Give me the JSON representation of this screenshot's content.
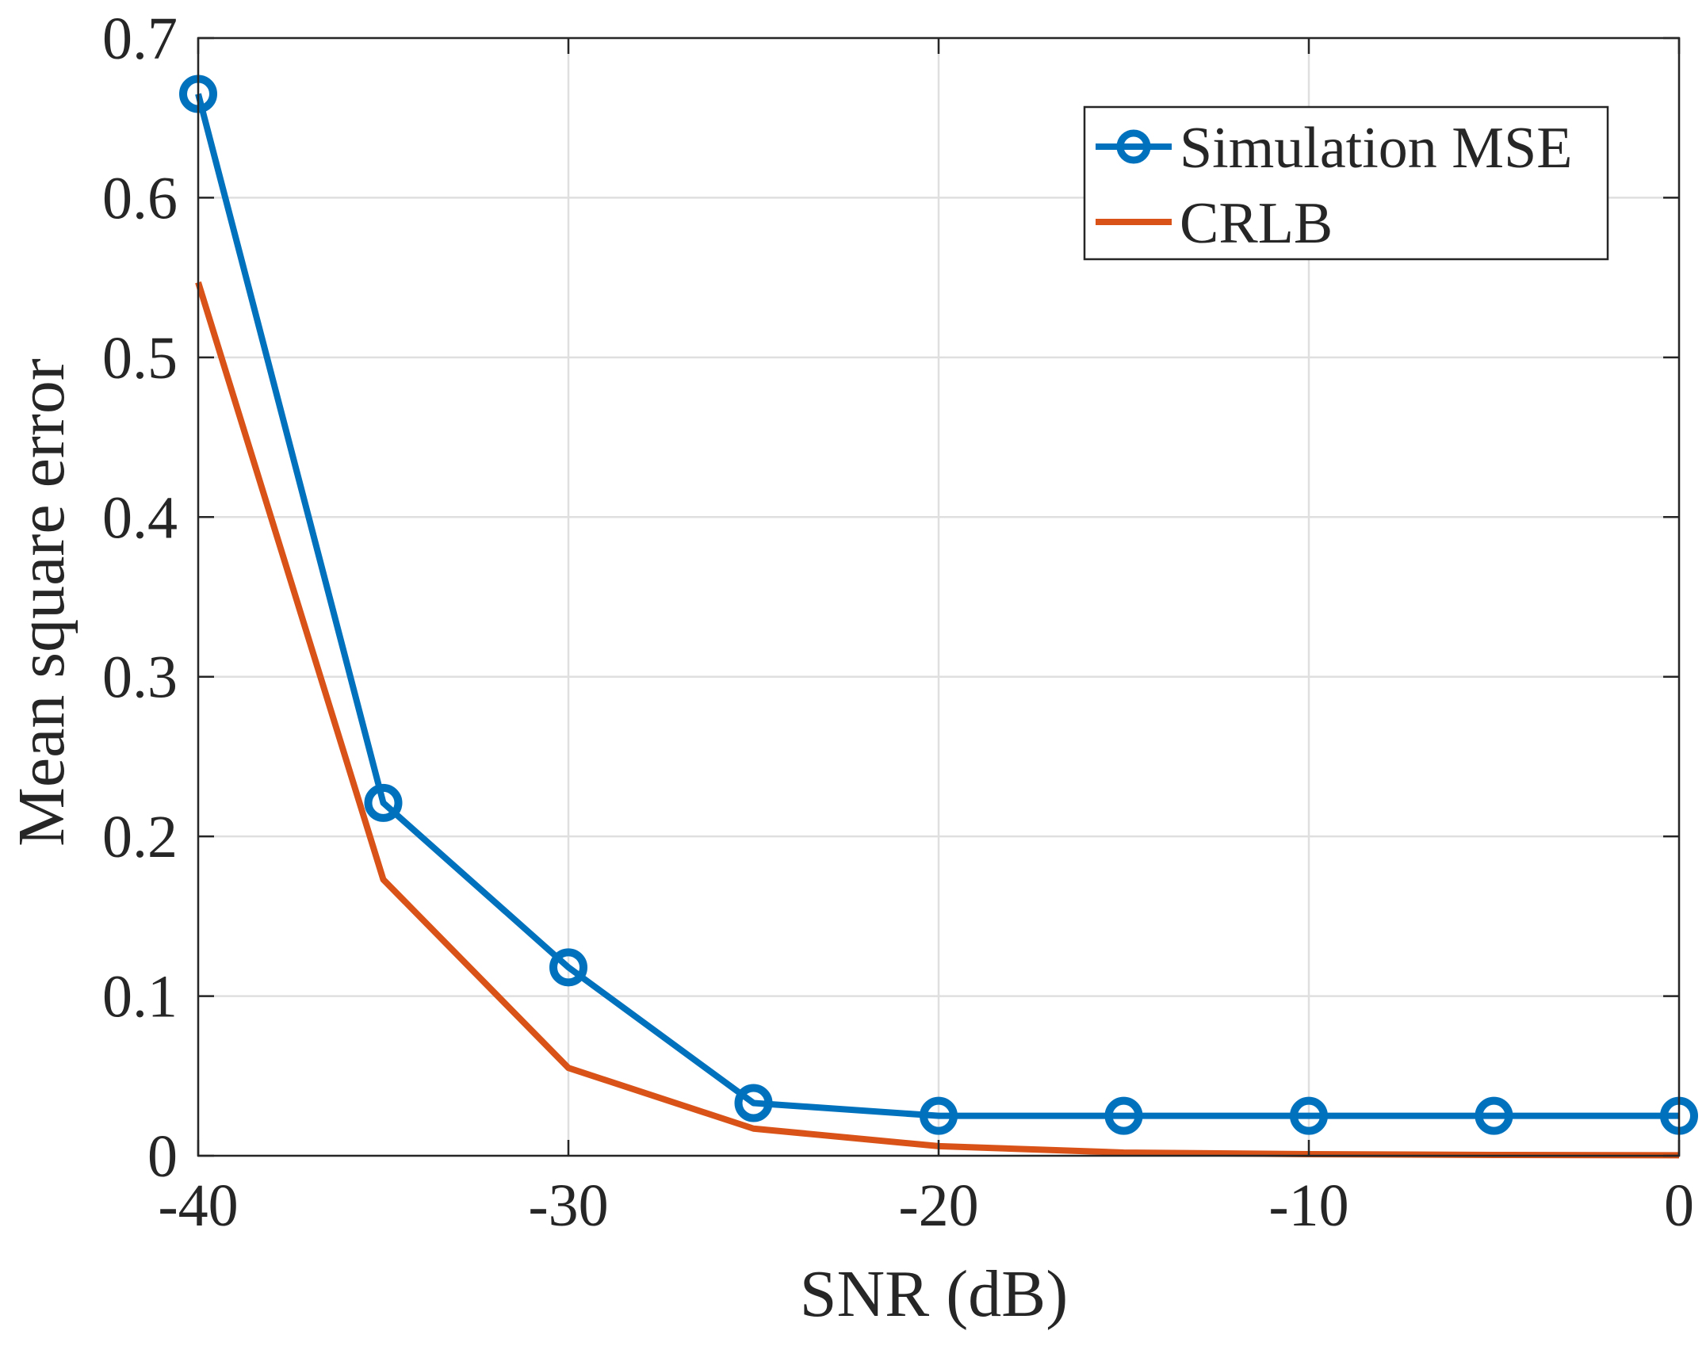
{
  "chart_data": {
    "type": "line",
    "title": "",
    "xlabel": "SNR (dB)",
    "ylabel": "Mean square error",
    "xlim": [
      -40,
      0
    ],
    "ylim": [
      0,
      0.7
    ],
    "grid": true,
    "legend_position": "top-right",
    "x_ticks": [
      -40,
      -30,
      -20,
      -10,
      0
    ],
    "x_tick_labels": [
      "-40",
      "-30",
      "-20",
      "-10",
      "0"
    ],
    "y_ticks": [
      0,
      0.1,
      0.2,
      0.3,
      0.4,
      0.5,
      0.6,
      0.7
    ],
    "y_tick_labels": [
      "0",
      "0.1",
      "0.2",
      "0.3",
      "0.4",
      "0.5",
      "0.6",
      "0.7"
    ],
    "x": [
      -40,
      -35,
      -30,
      -25,
      -20,
      -15,
      -10,
      -5,
      0
    ],
    "series": [
      {
        "name": "Simulation MSE",
        "color": "#0072BD",
        "marker": "circle",
        "values": [
          0.665,
          0.221,
          0.118,
          0.033,
          0.025,
          0.025,
          0.025,
          0.025,
          0.025
        ]
      },
      {
        "name": "CRLB",
        "color": "#D95319",
        "marker": "none",
        "values": [
          0.547,
          0.173,
          0.055,
          0.017,
          0.006,
          0.002,
          0.001,
          0.0005,
          0.0003
        ]
      }
    ]
  }
}
